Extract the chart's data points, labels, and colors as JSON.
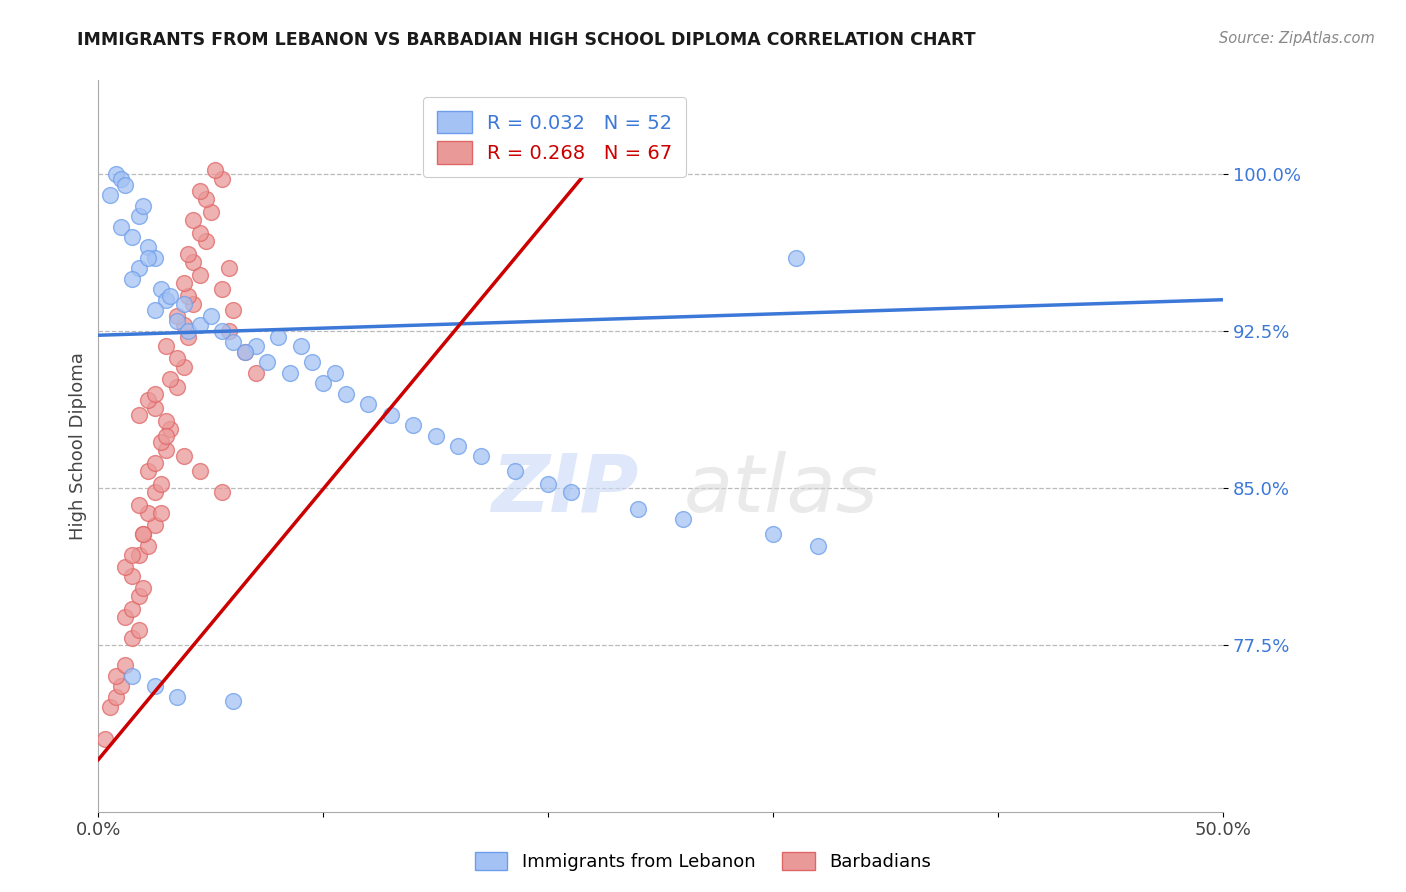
{
  "title": "IMMIGRANTS FROM LEBANON VS BARBADIAN HIGH SCHOOL DIPLOMA CORRELATION CHART",
  "source": "Source: ZipAtlas.com",
  "ylabel": "High School Diploma",
  "xlim": [
    0.0,
    0.5
  ],
  "ylim": [
    0.695,
    1.045
  ],
  "yticks": [
    0.775,
    0.85,
    0.925,
    1.0
  ],
  "ytick_labels": [
    "77.5%",
    "85.0%",
    "92.5%",
    "100.0%"
  ],
  "xticks": [
    0.0,
    0.1,
    0.2,
    0.3,
    0.4,
    0.5
  ],
  "xtick_labels": [
    "0.0%",
    "",
    "",
    "",
    "",
    "50.0%"
  ],
  "legend_label1": "Immigrants from Lebanon",
  "legend_label2": "Barbadians",
  "R1": 0.032,
  "N1": 52,
  "R2": 0.268,
  "N2": 67,
  "blue_color": "#a4c2f4",
  "pink_color": "#ea9999",
  "blue_edge_color": "#6d9eeb",
  "pink_edge_color": "#e06666",
  "blue_line_color": "#3c78d8",
  "pink_line_color": "#cc0000",
  "blue_scatter_x": [
    0.005,
    0.008,
    0.01,
    0.012,
    0.01,
    0.015,
    0.018,
    0.02,
    0.022,
    0.025,
    0.018,
    0.022,
    0.028,
    0.03,
    0.015,
    0.025,
    0.032,
    0.038,
    0.035,
    0.04,
    0.045,
    0.05,
    0.06,
    0.07,
    0.055,
    0.065,
    0.08,
    0.09,
    0.075,
    0.085,
    0.1,
    0.11,
    0.12,
    0.095,
    0.105,
    0.13,
    0.15,
    0.16,
    0.14,
    0.17,
    0.185,
    0.2,
    0.21,
    0.24,
    0.26,
    0.3,
    0.32,
    0.015,
    0.025,
    0.035,
    0.06,
    0.31
  ],
  "blue_scatter_y": [
    0.99,
    1.0,
    0.998,
    0.995,
    0.975,
    0.97,
    0.98,
    0.985,
    0.965,
    0.96,
    0.955,
    0.96,
    0.945,
    0.94,
    0.95,
    0.935,
    0.942,
    0.938,
    0.93,
    0.925,
    0.928,
    0.932,
    0.92,
    0.918,
    0.925,
    0.915,
    0.922,
    0.918,
    0.91,
    0.905,
    0.9,
    0.895,
    0.89,
    0.91,
    0.905,
    0.885,
    0.875,
    0.87,
    0.88,
    0.865,
    0.858,
    0.852,
    0.848,
    0.84,
    0.835,
    0.828,
    0.822,
    0.76,
    0.755,
    0.75,
    0.748,
    0.96
  ],
  "pink_scatter_x": [
    0.003,
    0.005,
    0.008,
    0.01,
    0.008,
    0.012,
    0.015,
    0.018,
    0.012,
    0.015,
    0.018,
    0.02,
    0.015,
    0.012,
    0.018,
    0.022,
    0.02,
    0.025,
    0.022,
    0.018,
    0.025,
    0.028,
    0.022,
    0.025,
    0.03,
    0.028,
    0.032,
    0.03,
    0.025,
    0.022,
    0.035,
    0.032,
    0.038,
    0.035,
    0.03,
    0.04,
    0.038,
    0.035,
    0.042,
    0.04,
    0.038,
    0.045,
    0.042,
    0.04,
    0.048,
    0.045,
    0.042,
    0.05,
    0.048,
    0.045,
    0.055,
    0.052,
    0.058,
    0.055,
    0.06,
    0.058,
    0.065,
    0.07,
    0.025,
    0.018,
    0.03,
    0.038,
    0.045,
    0.055,
    0.028,
    0.02,
    0.015
  ],
  "pink_scatter_y": [
    0.73,
    0.745,
    0.75,
    0.755,
    0.76,
    0.765,
    0.778,
    0.782,
    0.788,
    0.792,
    0.798,
    0.802,
    0.808,
    0.812,
    0.818,
    0.822,
    0.828,
    0.832,
    0.838,
    0.842,
    0.848,
    0.852,
    0.858,
    0.862,
    0.868,
    0.872,
    0.878,
    0.882,
    0.888,
    0.892,
    0.898,
    0.902,
    0.908,
    0.912,
    0.918,
    0.922,
    0.928,
    0.932,
    0.938,
    0.942,
    0.948,
    0.952,
    0.958,
    0.962,
    0.968,
    0.972,
    0.978,
    0.982,
    0.988,
    0.992,
    0.998,
    1.002,
    0.955,
    0.945,
    0.935,
    0.925,
    0.915,
    0.905,
    0.895,
    0.885,
    0.875,
    0.865,
    0.858,
    0.848,
    0.838,
    0.828,
    0.818
  ],
  "blue_trend_x": [
    0.0,
    0.5
  ],
  "blue_trend_y": [
    0.923,
    0.94
  ],
  "pink_trend_x": [
    0.0,
    0.22
  ],
  "pink_trend_y": [
    0.72,
    1.005
  ]
}
